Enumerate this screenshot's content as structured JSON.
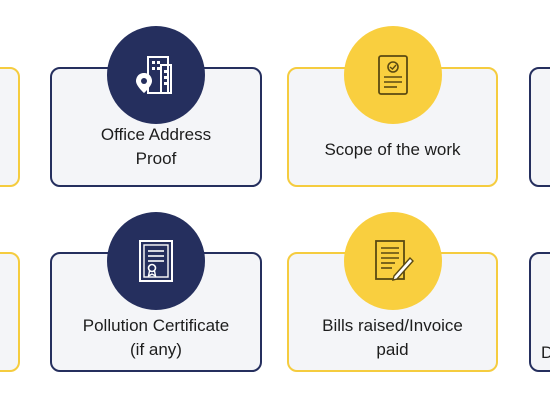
{
  "colors": {
    "navy": "#252f5e",
    "gold": "#f9cf3f",
    "card_background": "#f4f5f8"
  },
  "cards": [
    {
      "label": "Office Address\nProof",
      "icon": "office-location-building-icon",
      "accent": "navy"
    },
    {
      "label": "Scope of the work",
      "icon": "document-icon",
      "accent": "gold"
    },
    {
      "label": "Pollution Certificate\n(if any)",
      "icon": "certificate-icon",
      "accent": "navy"
    },
    {
      "label": "Bills raised/Invoice\npaid",
      "icon": "invoice-pen-icon",
      "accent": "gold"
    }
  ],
  "partial_cards": {
    "right_bottom_fragment": "D"
  }
}
